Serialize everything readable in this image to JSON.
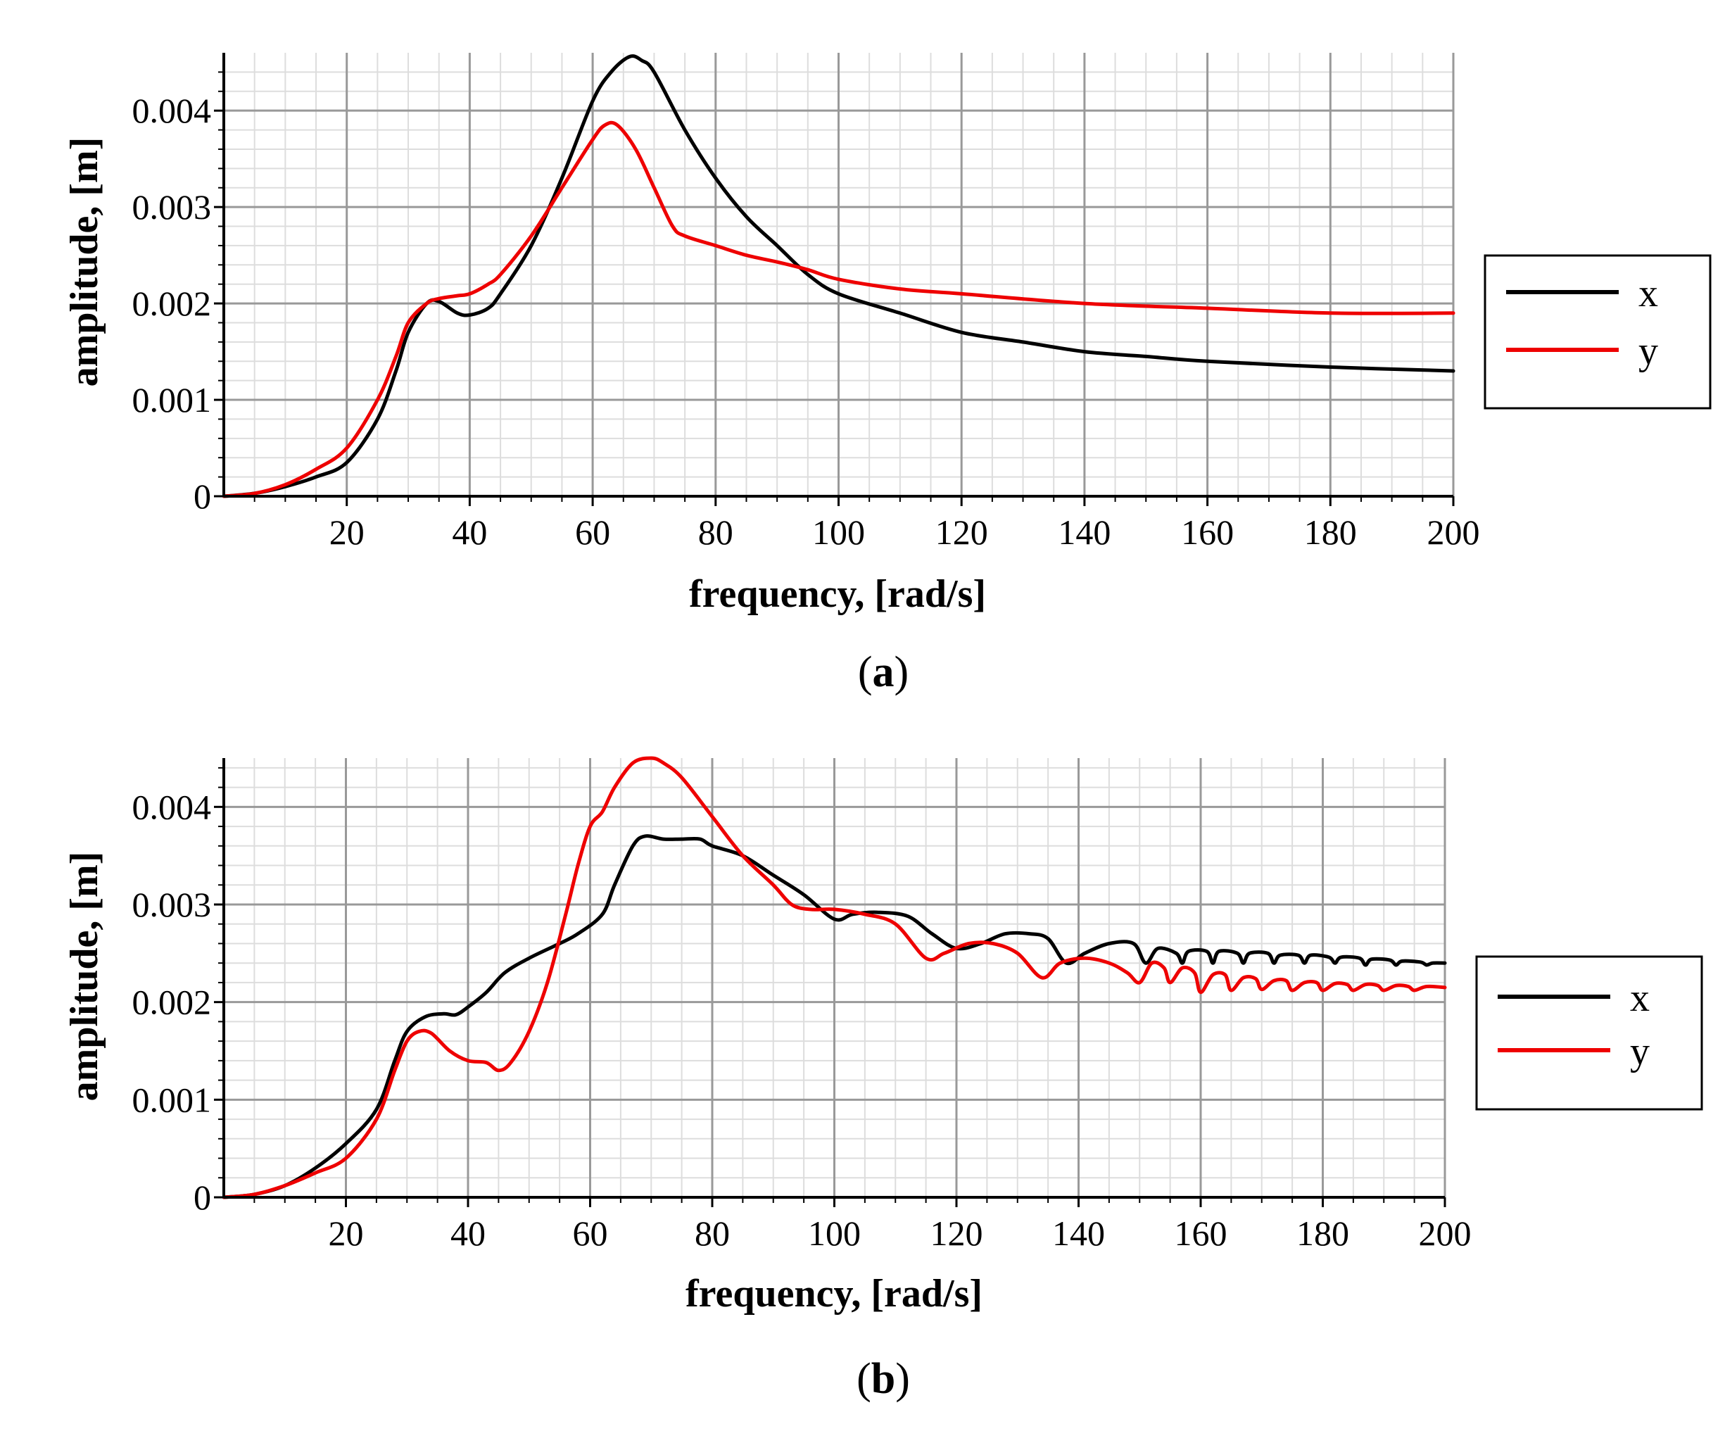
{
  "figure": {
    "colors": {
      "x": "#000000",
      "y": "#ee0000",
      "grid_major": "#999999",
      "grid_minor": "#dddddd"
    }
  },
  "chart_data": [
    {
      "id": "a",
      "type": "line",
      "panel_label": {
        "open": "(",
        "letter": "a",
        "close": ")"
      },
      "xlabel": "frequency, [rad/s]",
      "ylabel": "amplitude, [m]",
      "xlim": [
        0,
        200
      ],
      "ylim": [
        0,
        0.0046
      ],
      "x_ticks": [
        20,
        40,
        60,
        80,
        100,
        120,
        140,
        160,
        180,
        200
      ],
      "x_tick_labels": [
        "20",
        "40",
        "60",
        "80",
        "100",
        "120",
        "140",
        "160",
        "180",
        "200"
      ],
      "y_ticks": [
        0,
        0.001,
        0.002,
        0.003,
        0.004
      ],
      "y_tick_labels": [
        "0",
        "0.001",
        "0.002",
        "0.003",
        "0.004"
      ],
      "grid": true,
      "legend": {
        "placement": "right",
        "entries": [
          "x",
          "y"
        ]
      },
      "series": [
        {
          "name": "x",
          "color": "#000000",
          "points": [
            [
              0,
              0
            ],
            [
              5,
              3e-05
            ],
            [
              10,
              0.0001
            ],
            [
              15,
              0.0002
            ],
            [
              20,
              0.00035
            ],
            [
              25,
              0.0008
            ],
            [
              28,
              0.0013
            ],
            [
              30,
              0.0017
            ],
            [
              33,
              0.002
            ],
            [
              35,
              0.00202
            ],
            [
              38,
              0.0019
            ],
            [
              40,
              0.00188
            ],
            [
              43,
              0.00195
            ],
            [
              45,
              0.0021
            ],
            [
              50,
              0.0026
            ],
            [
              55,
              0.0033
            ],
            [
              60,
              0.0041
            ],
            [
              63,
              0.0044
            ],
            [
              66,
              0.00456
            ],
            [
              68,
              0.00452
            ],
            [
              70,
              0.0044
            ],
            [
              75,
              0.0038
            ],
            [
              80,
              0.0033
            ],
            [
              85,
              0.0029
            ],
            [
              90,
              0.0026
            ],
            [
              95,
              0.0023
            ],
            [
              100,
              0.0021
            ],
            [
              110,
              0.0019
            ],
            [
              120,
              0.0017
            ],
            [
              130,
              0.0016
            ],
            [
              140,
              0.0015
            ],
            [
              150,
              0.00145
            ],
            [
              160,
              0.0014
            ],
            [
              180,
              0.00134
            ],
            [
              200,
              0.0013
            ]
          ]
        },
        {
          "name": "y",
          "color": "#ee0000",
          "points": [
            [
              0,
              0
            ],
            [
              5,
              3e-05
            ],
            [
              10,
              0.00012
            ],
            [
              15,
              0.00028
            ],
            [
              20,
              0.0005
            ],
            [
              25,
              0.001
            ],
            [
              28,
              0.00145
            ],
            [
              30,
              0.0018
            ],
            [
              33,
              0.002
            ],
            [
              35,
              0.00205
            ],
            [
              38,
              0.00208
            ],
            [
              40,
              0.0021
            ],
            [
              43,
              0.0022
            ],
            [
              45,
              0.0023
            ],
            [
              50,
              0.0027
            ],
            [
              55,
              0.0032
            ],
            [
              60,
              0.0037
            ],
            [
              62,
              0.00385
            ],
            [
              64,
              0.00385
            ],
            [
              67,
              0.0036
            ],
            [
              70,
              0.0032
            ],
            [
              73,
              0.0028
            ],
            [
              75,
              0.0027
            ],
            [
              80,
              0.0026
            ],
            [
              85,
              0.0025
            ],
            [
              90,
              0.00243
            ],
            [
              95,
              0.00235
            ],
            [
              100,
              0.00225
            ],
            [
              110,
              0.00215
            ],
            [
              120,
              0.0021
            ],
            [
              140,
              0.002
            ],
            [
              160,
              0.00195
            ],
            [
              180,
              0.0019
            ],
            [
              200,
              0.0019
            ]
          ]
        }
      ]
    },
    {
      "id": "b",
      "type": "line",
      "panel_label": {
        "open": "(",
        "letter": "b",
        "close": ")"
      },
      "xlabel": "frequency, [rad/s]",
      "ylabel": "amplitude, [m]",
      "xlim": [
        0,
        200
      ],
      "ylim": [
        0,
        0.0045
      ],
      "x_ticks": [
        20,
        40,
        60,
        80,
        100,
        120,
        140,
        160,
        180,
        200
      ],
      "x_tick_labels": [
        "20",
        "40",
        "60",
        "80",
        "100",
        "120",
        "140",
        "160",
        "180",
        "200"
      ],
      "y_ticks": [
        0,
        0.001,
        0.002,
        0.003,
        0.004
      ],
      "y_tick_labels": [
        "0",
        "0.001",
        "0.002",
        "0.003",
        "0.004"
      ],
      "grid": true,
      "legend": {
        "placement": "right",
        "entries": [
          "x",
          "y"
        ]
      },
      "series": [
        {
          "name": "x",
          "color": "#000000",
          "points": [
            [
              0,
              0
            ],
            [
              5,
              3e-05
            ],
            [
              10,
              0.00012
            ],
            [
              15,
              0.0003
            ],
            [
              20,
              0.00055
            ],
            [
              25,
              0.0009
            ],
            [
              28,
              0.0014
            ],
            [
              30,
              0.0017
            ],
            [
              33,
              0.00185
            ],
            [
              36,
              0.00188
            ],
            [
              38,
              0.00187
            ],
            [
              40,
              0.00195
            ],
            [
              43,
              0.0021
            ],
            [
              46,
              0.0023
            ],
            [
              50,
              0.00245
            ],
            [
              55,
              0.0026
            ],
            [
              58,
              0.0027
            ],
            [
              62,
              0.0029
            ],
            [
              64,
              0.0032
            ],
            [
              67,
              0.0036
            ],
            [
              69,
              0.0037
            ],
            [
              72,
              0.00367
            ],
            [
              75,
              0.00367
            ],
            [
              78,
              0.00367
            ],
            [
              80,
              0.0036
            ],
            [
              85,
              0.0035
            ],
            [
              90,
              0.0033
            ],
            [
              95,
              0.0031
            ],
            [
              100,
              0.00285
            ],
            [
              103,
              0.0029
            ],
            [
              107,
              0.00292
            ],
            [
              112,
              0.00288
            ],
            [
              116,
              0.0027
            ],
            [
              120,
              0.00255
            ],
            [
              124,
              0.0026
            ],
            [
              128,
              0.0027
            ],
            [
              132,
              0.0027
            ],
            [
              135,
              0.00265
            ],
            [
              138,
              0.0024
            ],
            [
              141,
              0.0025
            ],
            [
              145,
              0.0026
            ],
            [
              149,
              0.0026
            ],
            [
              151,
              0.0024
            ],
            [
              153,
              0.00255
            ],
            [
              156,
              0.0025
            ],
            [
              157,
              0.0024
            ],
            [
              158,
              0.00252
            ],
            [
              161,
              0.00252
            ],
            [
              162,
              0.0024
            ],
            [
              163,
              0.00252
            ],
            [
              166,
              0.0025
            ],
            [
              167,
              0.0024
            ],
            [
              168,
              0.0025
            ],
            [
              171,
              0.0025
            ],
            [
              172,
              0.0024
            ],
            [
              173,
              0.00248
            ],
            [
              176,
              0.00248
            ],
            [
              177,
              0.0024
            ],
            [
              178,
              0.00248
            ],
            [
              181,
              0.00246
            ],
            [
              182,
              0.0024
            ],
            [
              183,
              0.00246
            ],
            [
              186,
              0.00245
            ],
            [
              187,
              0.00238
            ],
            [
              188,
              0.00244
            ],
            [
              191,
              0.00243
            ],
            [
              192,
              0.00238
            ],
            [
              193,
              0.00242
            ],
            [
              196,
              0.00241
            ],
            [
              197,
              0.00238
            ],
            [
              198,
              0.0024
            ],
            [
              200,
              0.0024
            ]
          ]
        },
        {
          "name": "y",
          "color": "#ee0000",
          "points": [
            [
              0,
              0
            ],
            [
              5,
              3e-05
            ],
            [
              10,
              0.00012
            ],
            [
              15,
              0.00025
            ],
            [
              20,
              0.0004
            ],
            [
              25,
              0.0008
            ],
            [
              28,
              0.0013
            ],
            [
              30,
              0.0016
            ],
            [
              32,
              0.0017
            ],
            [
              34,
              0.00168
            ],
            [
              37,
              0.0015
            ],
            [
              40,
              0.0014
            ],
            [
              43,
              0.00138
            ],
            [
              45,
              0.0013
            ],
            [
              47,
              0.00138
            ],
            [
              50,
              0.0017
            ],
            [
              53,
              0.0022
            ],
            [
              56,
              0.0029
            ],
            [
              58,
              0.0034
            ],
            [
              60,
              0.0038
            ],
            [
              62,
              0.00395
            ],
            [
              64,
              0.0042
            ],
            [
              67,
              0.00445
            ],
            [
              70,
              0.0045
            ],
            [
              72,
              0.00445
            ],
            [
              75,
              0.0043
            ],
            [
              80,
              0.0039
            ],
            [
              85,
              0.0035
            ],
            [
              90,
              0.0032
            ],
            [
              93,
              0.003
            ],
            [
              96,
              0.00295
            ],
            [
              100,
              0.00295
            ],
            [
              105,
              0.0029
            ],
            [
              110,
              0.0028
            ],
            [
              115,
              0.00245
            ],
            [
              118,
              0.0025
            ],
            [
              122,
              0.0026
            ],
            [
              126,
              0.0026
            ],
            [
              130,
              0.0025
            ],
            [
              134,
              0.00225
            ],
            [
              137,
              0.0024
            ],
            [
              141,
              0.00245
            ],
            [
              145,
              0.0024
            ],
            [
              148,
              0.0023
            ],
            [
              150,
              0.0022
            ],
            [
              152,
              0.0024
            ],
            [
              154,
              0.00235
            ],
            [
              155,
              0.0022
            ],
            [
              157,
              0.00235
            ],
            [
              159,
              0.0023
            ],
            [
              160,
              0.0021
            ],
            [
              162,
              0.00228
            ],
            [
              164,
              0.00228
            ],
            [
              165,
              0.00212
            ],
            [
              167,
              0.00225
            ],
            [
              169,
              0.00224
            ],
            [
              170,
              0.00213
            ],
            [
              172,
              0.00222
            ],
            [
              174,
              0.00222
            ],
            [
              175,
              0.00212
            ],
            [
              177,
              0.0022
            ],
            [
              179,
              0.0022
            ],
            [
              180,
              0.00212
            ],
            [
              182,
              0.00219
            ],
            [
              184,
              0.00218
            ],
            [
              185,
              0.00212
            ],
            [
              187,
              0.00218
            ],
            [
              189,
              0.00217
            ],
            [
              190,
              0.00212
            ],
            [
              192,
              0.00217
            ],
            [
              194,
              0.00216
            ],
            [
              195,
              0.00212
            ],
            [
              197,
              0.00216
            ],
            [
              200,
              0.00215
            ]
          ]
        }
      ]
    }
  ]
}
